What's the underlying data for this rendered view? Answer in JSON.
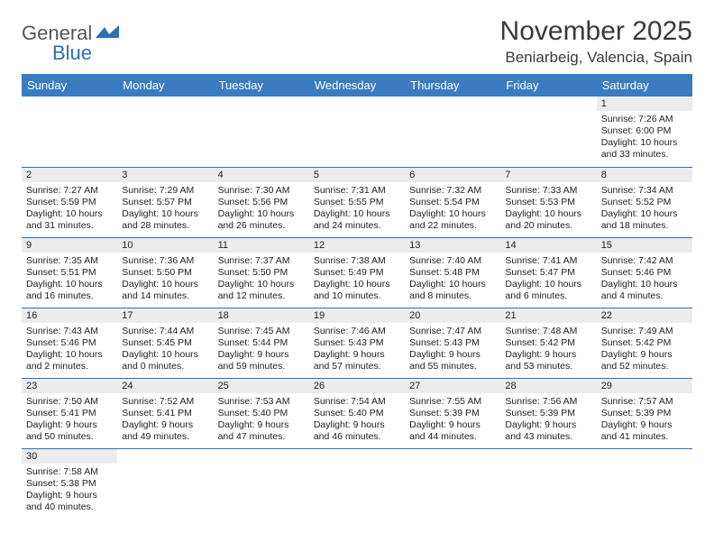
{
  "logo": {
    "textA": "General",
    "textB": "Blue"
  },
  "title": "November 2025",
  "location": "Beniarbeig, Valencia, Spain",
  "colors": {
    "headerBg": "#3b7bbf",
    "headerText": "#ffffff",
    "border": "#2f6fb3",
    "dayBg": "#ececec"
  },
  "weekdays": [
    "Sunday",
    "Monday",
    "Tuesday",
    "Wednesday",
    "Thursday",
    "Friday",
    "Saturday"
  ],
  "weeks": [
    [
      null,
      null,
      null,
      null,
      null,
      null,
      {
        "n": "1",
        "sr": "7:26 AM",
        "ss": "6:00 PM",
        "dl": "10 hours and 33 minutes."
      }
    ],
    [
      {
        "n": "2",
        "sr": "7:27 AM",
        "ss": "5:59 PM",
        "dl": "10 hours and 31 minutes."
      },
      {
        "n": "3",
        "sr": "7:29 AM",
        "ss": "5:57 PM",
        "dl": "10 hours and 28 minutes."
      },
      {
        "n": "4",
        "sr": "7:30 AM",
        "ss": "5:56 PM",
        "dl": "10 hours and 26 minutes."
      },
      {
        "n": "5",
        "sr": "7:31 AM",
        "ss": "5:55 PM",
        "dl": "10 hours and 24 minutes."
      },
      {
        "n": "6",
        "sr": "7:32 AM",
        "ss": "5:54 PM",
        "dl": "10 hours and 22 minutes."
      },
      {
        "n": "7",
        "sr": "7:33 AM",
        "ss": "5:53 PM",
        "dl": "10 hours and 20 minutes."
      },
      {
        "n": "8",
        "sr": "7:34 AM",
        "ss": "5:52 PM",
        "dl": "10 hours and 18 minutes."
      }
    ],
    [
      {
        "n": "9",
        "sr": "7:35 AM",
        "ss": "5:51 PM",
        "dl": "10 hours and 16 minutes."
      },
      {
        "n": "10",
        "sr": "7:36 AM",
        "ss": "5:50 PM",
        "dl": "10 hours and 14 minutes."
      },
      {
        "n": "11",
        "sr": "7:37 AM",
        "ss": "5:50 PM",
        "dl": "10 hours and 12 minutes."
      },
      {
        "n": "12",
        "sr": "7:38 AM",
        "ss": "5:49 PM",
        "dl": "10 hours and 10 minutes."
      },
      {
        "n": "13",
        "sr": "7:40 AM",
        "ss": "5:48 PM",
        "dl": "10 hours and 8 minutes."
      },
      {
        "n": "14",
        "sr": "7:41 AM",
        "ss": "5:47 PM",
        "dl": "10 hours and 6 minutes."
      },
      {
        "n": "15",
        "sr": "7:42 AM",
        "ss": "5:46 PM",
        "dl": "10 hours and 4 minutes."
      }
    ],
    [
      {
        "n": "16",
        "sr": "7:43 AM",
        "ss": "5:46 PM",
        "dl": "10 hours and 2 minutes."
      },
      {
        "n": "17",
        "sr": "7:44 AM",
        "ss": "5:45 PM",
        "dl": "10 hours and 0 minutes."
      },
      {
        "n": "18",
        "sr": "7:45 AM",
        "ss": "5:44 PM",
        "dl": "9 hours and 59 minutes."
      },
      {
        "n": "19",
        "sr": "7:46 AM",
        "ss": "5:43 PM",
        "dl": "9 hours and 57 minutes."
      },
      {
        "n": "20",
        "sr": "7:47 AM",
        "ss": "5:43 PM",
        "dl": "9 hours and 55 minutes."
      },
      {
        "n": "21",
        "sr": "7:48 AM",
        "ss": "5:42 PM",
        "dl": "9 hours and 53 minutes."
      },
      {
        "n": "22",
        "sr": "7:49 AM",
        "ss": "5:42 PM",
        "dl": "9 hours and 52 minutes."
      }
    ],
    [
      {
        "n": "23",
        "sr": "7:50 AM",
        "ss": "5:41 PM",
        "dl": "9 hours and 50 minutes."
      },
      {
        "n": "24",
        "sr": "7:52 AM",
        "ss": "5:41 PM",
        "dl": "9 hours and 49 minutes."
      },
      {
        "n": "25",
        "sr": "7:53 AM",
        "ss": "5:40 PM",
        "dl": "9 hours and 47 minutes."
      },
      {
        "n": "26",
        "sr": "7:54 AM",
        "ss": "5:40 PM",
        "dl": "9 hours and 46 minutes."
      },
      {
        "n": "27",
        "sr": "7:55 AM",
        "ss": "5:39 PM",
        "dl": "9 hours and 44 minutes."
      },
      {
        "n": "28",
        "sr": "7:56 AM",
        "ss": "5:39 PM",
        "dl": "9 hours and 43 minutes."
      },
      {
        "n": "29",
        "sr": "7:57 AM",
        "ss": "5:39 PM",
        "dl": "9 hours and 41 minutes."
      }
    ],
    [
      {
        "n": "30",
        "sr": "7:58 AM",
        "ss": "5:38 PM",
        "dl": "9 hours and 40 minutes."
      },
      null,
      null,
      null,
      null,
      null,
      null
    ]
  ],
  "labels": {
    "sunrise": "Sunrise: ",
    "sunset": "Sunset: ",
    "daylight": "Daylight: "
  }
}
